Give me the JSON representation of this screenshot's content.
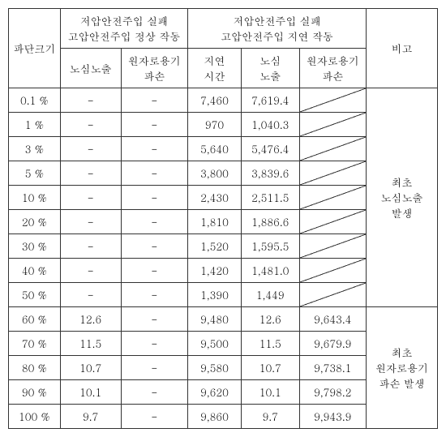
{
  "headers": {
    "size": "파단크기",
    "group1_line1": "저압안전주입 실패",
    "group1_line2": "고압안전주입 정상 작동",
    "group2_line1": "저압안전주입 실패",
    "group2_line2": "고압안전주입 지연 작동",
    "note": "비고",
    "sub_core": "노심노출",
    "sub_vessel_line1": "원자로용기",
    "sub_vessel_line2": "파손",
    "sub_delay_line1": "지연",
    "sub_delay_line2": "시간",
    "sub_core2_line1": "노심",
    "sub_core2_line2": "노출",
    "sub_vessel2_line1": "원자로용기",
    "sub_vessel2_line2": "파손"
  },
  "note1_l1": "최초",
  "note1_l2": "노심노출",
  "note1_l3": "발생",
  "note2_l1": "최초",
  "note2_l2": "원자로용기",
  "note2_l3": "파손 발생",
  "rows": [
    {
      "size": "0.1 %",
      "a": "-",
      "b": "-",
      "c": "7,460",
      "d": "7,619.4",
      "e_diag": true
    },
    {
      "size": "1 %",
      "a": "-",
      "b": "-",
      "c": "970",
      "d": "1,040.3",
      "e_diag": true
    },
    {
      "size": "3 %",
      "a": "-",
      "b": "-",
      "c": "5,640",
      "d": "5,476.4",
      "e_diag": true
    },
    {
      "size": "5 %",
      "a": "-",
      "b": "-",
      "c": "3,800",
      "d": "3,839.6",
      "e_diag": true
    },
    {
      "size": "10 %",
      "a": "-",
      "b": "-",
      "c": "2,430",
      "d": "2,511.5",
      "e_diag": true
    },
    {
      "size": "20 %",
      "a": "-",
      "b": "-",
      "c": "1,810",
      "d": "1,886.6",
      "e_diag": true
    },
    {
      "size": "30 %",
      "a": "-",
      "b": "-",
      "c": "1,520",
      "d": "1,595.5",
      "e_diag": true
    },
    {
      "size": "40 %",
      "a": "-",
      "b": "-",
      "c": "1,420",
      "d": "1,481.0",
      "e_diag": true
    },
    {
      "size": "50 %",
      "a": "-",
      "b": "-",
      "c": "1,390",
      "d": "1,449",
      "e_diag": true
    },
    {
      "size": "60 %",
      "a": "12.6",
      "b": "-",
      "c": "9,480",
      "d": "12.6",
      "e": "9,643.4"
    },
    {
      "size": "70 %",
      "a": "11.5",
      "b": "-",
      "c": "9,500",
      "d": "11.5",
      "e": "9,679.9"
    },
    {
      "size": "80 %",
      "a": "10.7",
      "b": "-",
      "c": "9,580",
      "d": "10.7",
      "e": "9,738.1"
    },
    {
      "size": "90 %",
      "a": "10.1",
      "b": "-",
      "c": "9,620",
      "d": "10.1",
      "e": "9,798.2"
    },
    {
      "size": "100 %",
      "a": "9.7",
      "b": "-",
      "c": "9,860",
      "d": "9.7",
      "e": "9,943.9"
    }
  ]
}
